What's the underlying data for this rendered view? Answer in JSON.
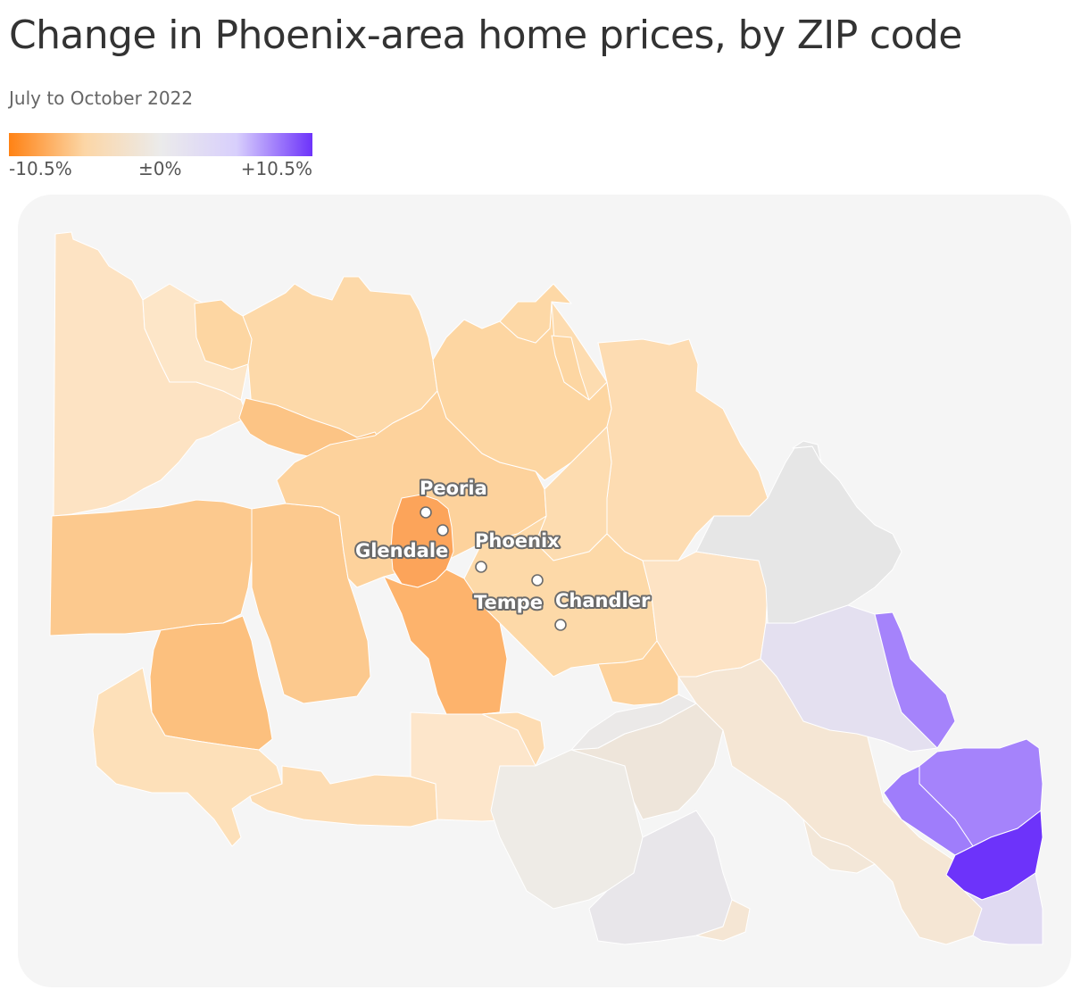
{
  "title": "Change in Phoenix-area home prices, by ZIP code",
  "subtitle": "July to October 2022",
  "legend": {
    "min_label": "-10.5%",
    "mid_label": "±0%",
    "max_label": "+10.5%",
    "min_color": "#ff8214",
    "mid_color": "#ebebeb",
    "max_color": "#6d33fa"
  },
  "colors": {
    "background_panel": "#f5f5f5",
    "boundary": "#ffffff"
  },
  "cities": [
    {
      "name": "Peoria"
    },
    {
      "name": "Glendale"
    },
    {
      "name": "Phoenix"
    },
    {
      "name": "Tempe"
    },
    {
      "name": "Chandler"
    }
  ]
}
